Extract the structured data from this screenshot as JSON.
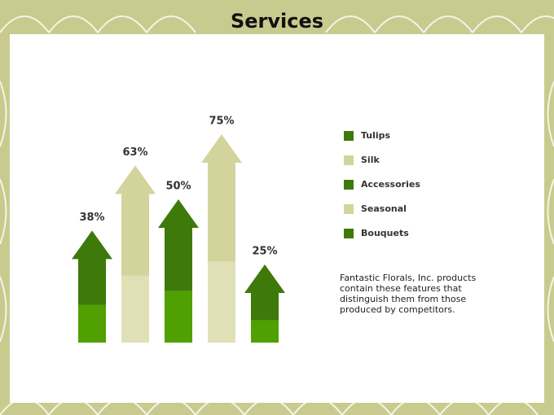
{
  "chart_data": {
    "type": "arrow-bar",
    "title": "Services",
    "categories": [
      "Tulips",
      "Silk",
      "Accessories",
      "Seasonal",
      "Bouquets"
    ],
    "values": [
      38,
      63,
      50,
      75,
      25
    ],
    "value_labels": [
      "38%",
      "63%",
      "50%",
      "75%",
      "25%"
    ],
    "colors": [
      "#3d7a0a",
      "#d3d49c",
      "#3d7a0a",
      "#d3d49c",
      "#3d7a0a"
    ],
    "description": "Fantastic Florals, Inc. products contain these features that distinguish them from those produced by competitors."
  }
}
